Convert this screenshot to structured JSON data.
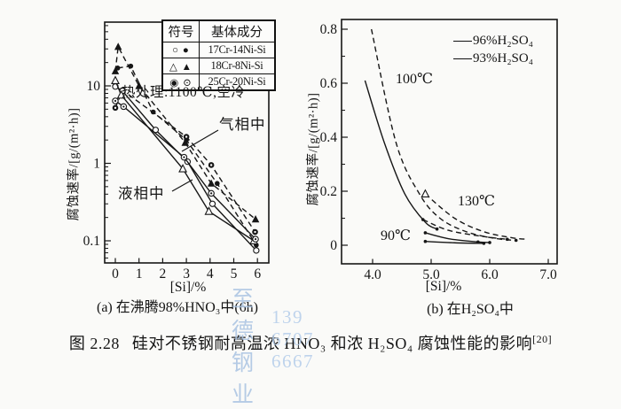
{
  "watermark": {
    "line1": "至 德 钢 业",
    "line2": "139 6707 6667",
    "color": "#aac3e3"
  },
  "caption": {
    "prefix": "图 2.28",
    "text": "硅对不锈钢耐高温浓 HNO₃ 和浓 H₂SO₄ 腐蚀性能的影响",
    "ref": "[20]"
  },
  "chart_data": [
    {
      "id": "a",
      "type": "line",
      "title": "(a) 在沸腾98%HNO₃中(6h)",
      "xlabel": "[Si]/%",
      "ylabel": "腐蚀速率/[g/(m²·h)]",
      "x_ticks": [
        0,
        1,
        2,
        3,
        4,
        5,
        6
      ],
      "y_scale": "log",
      "y_ticks": [
        0.1,
        1,
        10
      ],
      "y_tick_labels": [
        "0.1",
        "1",
        "10"
      ],
      "xlim": [
        -0.45,
        6.55
      ],
      "ylim": [
        0.05,
        65
      ],
      "grid": false,
      "annotations": {
        "heat_treatment": "热处理:1100℃,空冷",
        "gas_phase": "气相中",
        "liquid_phase": "液相中"
      },
      "legend": {
        "position": "top-right-table",
        "headers": [
          "符号",
          "基体成分"
        ],
        "rows": [
          {
            "symbols": "○ ●",
            "label": "17Cr-14Ni-Si"
          },
          {
            "symbols": "△ ▲",
            "label": "18Cr-8Ni-Si"
          },
          {
            "symbols": "◉ ⊙",
            "label": "25Cr-20Ni-Si"
          }
        ]
      },
      "series": [
        {
          "name": "17Cr-14Ni-Si 气相",
          "style": "dashed",
          "marker": "circle-filled",
          "points": [
            [
              0.1,
              17
            ],
            [
              0.65,
              18
            ],
            [
              1.6,
              4.6
            ],
            [
              3.0,
              2.0
            ],
            [
              4.3,
              0.55
            ],
            [
              5.95,
              0.088
            ]
          ]
        },
        {
          "name": "18Cr-8Ni-Si 气相",
          "style": "dashed",
          "marker": "tri-filled",
          "points": [
            [
              0,
              15.5
            ],
            [
              0.12,
              32
            ],
            [
              1.0,
              10
            ],
            [
              2.95,
              1.85
            ],
            [
              4.05,
              0.55
            ],
            [
              5.92,
              0.19
            ]
          ]
        },
        {
          "name": "25Cr-20Ni-Si 气相",
          "style": "dashed",
          "marker": "circle-bull",
          "points": [
            [
              0,
              5.2
            ],
            [
              0.3,
              8.8
            ],
            [
              3.0,
              2.2
            ],
            [
              4.05,
              0.95
            ],
            [
              5.9,
              0.13
            ]
          ]
        },
        {
          "name": "17Cr-14Ni-Si 液相",
          "style": "solid",
          "marker": "circle-open",
          "points": [
            [
              0,
              9.8
            ],
            [
              0.3,
              8.6
            ],
            [
              1.7,
              2.7
            ],
            [
              3.05,
              1.05
            ],
            [
              4.1,
              0.3
            ],
            [
              5.95,
              0.075
            ]
          ]
        },
        {
          "name": "18Cr-8Ni-Si 液相",
          "style": "solid",
          "marker": "tri-open",
          "points": [
            [
              0,
              11.7
            ],
            [
              0.25,
              7.6
            ],
            [
              2.85,
              0.85
            ],
            [
              3.95,
              0.24
            ],
            [
              5.85,
              0.1
            ]
          ]
        },
        {
          "name": "25Cr-20Ni-Si 液相",
          "style": "solid",
          "marker": "circle-dot",
          "points": [
            [
              0,
              6.4
            ],
            [
              0.35,
              5.4
            ],
            [
              2.9,
              1.2
            ],
            [
              4.05,
              0.41
            ],
            [
              5.92,
              0.105
            ]
          ]
        }
      ]
    },
    {
      "id": "b",
      "type": "line",
      "title": "(b) 在H₂SO₄中",
      "xlabel": "[Si]/%",
      "ylabel": "腐蚀速率/[g/(m²·h)]",
      "x_ticks": [
        4.0,
        5.0,
        6.0,
        7.0
      ],
      "x_tick_labels": [
        "4.0",
        "5.0",
        "6.0",
        "7.0"
      ],
      "y_scale": "linear",
      "y_ticks": [
        0,
        0.2,
        0.4,
        0.6,
        0.8
      ],
      "y_tick_labels": [
        "0",
        "0.2",
        "0.4",
        "0.6",
        "0.8"
      ],
      "xlim": [
        3.5,
        7.15
      ],
      "ylim": [
        -0.07,
        0.84
      ],
      "grid": false,
      "annotations": {
        "t100": "100℃",
        "t130": "130℃",
        "t90": "90℃"
      },
      "legend": [
        {
          "label": "96%H₂SO₄",
          "style": "solid"
        },
        {
          "label": "93%H₂SO₄",
          "style": "solid"
        }
      ],
      "series": [
        {
          "name": "96%H₂SO₄ 100℃",
          "style": "solid",
          "marker": "dot",
          "marker_at": [
            4
          ],
          "smooth": true,
          "points": [
            [
              3.87,
              0.61
            ],
            [
              4.2,
              0.38
            ],
            [
              4.55,
              0.19
            ],
            [
              4.9,
              0.085
            ],
            [
              5.1,
              0.06
            ]
          ]
        },
        {
          "name": "93%H₂SO₄ 100℃",
          "style": "dashed",
          "marker": "dot",
          "marker_at": [
            6
          ],
          "smooth": true,
          "points": [
            [
              3.98,
              0.8
            ],
            [
              4.4,
              0.38
            ],
            [
              4.8,
              0.19
            ],
            [
              5.15,
              0.1
            ],
            [
              5.6,
              0.05
            ],
            [
              6.1,
              0.025
            ],
            [
              6.45,
              0.018
            ]
          ]
        },
        {
          "name": "93%H₂SO₄ 130℃",
          "style": "dashed",
          "marker": "tri-open",
          "marker_at": [
            0
          ],
          "smooth": true,
          "points": [
            [
              4.9,
              0.19
            ],
            [
              5.4,
              0.1
            ],
            [
              5.9,
              0.05
            ],
            [
              6.4,
              0.027
            ],
            [
              6.65,
              0.022
            ]
          ]
        },
        {
          "name": "96%H₂SO₄ 130℃",
          "style": "dashed",
          "marker": "dot",
          "marker_at": [
            0,
            3
          ],
          "smooth": true,
          "points": [
            [
              4.86,
              0.095
            ],
            [
              5.3,
              0.055
            ],
            [
              5.9,
              0.032
            ],
            [
              6.3,
              0.022
            ]
          ]
        },
        {
          "name": "93%H₂SO₄ 90℃",
          "style": "solid",
          "marker": "dot",
          "marker_at": [
            0,
            2,
            3
          ],
          "smooth": true,
          "points": [
            [
              4.9,
              0.046
            ],
            [
              5.3,
              0.024
            ],
            [
              5.8,
              0.012
            ],
            [
              6.0,
              0.01
            ]
          ]
        },
        {
          "name": "96%H₂SO₄ 90℃",
          "style": "solid",
          "marker": "dot",
          "marker_at": [
            0,
            2
          ],
          "smooth": true,
          "points": [
            [
              4.9,
              0.014
            ],
            [
              5.4,
              0.009
            ],
            [
              5.9,
              0.007
            ]
          ]
        }
      ]
    }
  ]
}
